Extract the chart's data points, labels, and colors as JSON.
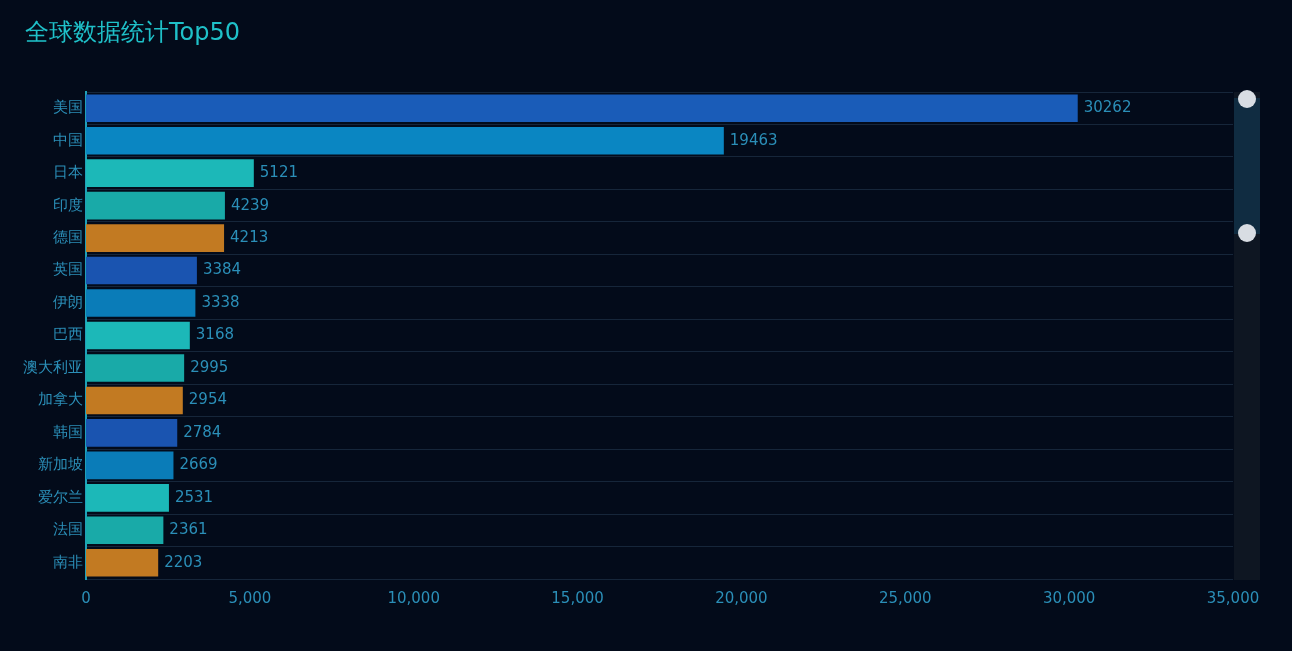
{
  "chart_data": {
    "type": "bar",
    "orientation": "horizontal",
    "title": "全球数据统计Top50",
    "categories": [
      "美国",
      "中国",
      "日本",
      "印度",
      "德国",
      "英国",
      "伊朗",
      "巴西",
      "澳大利亚",
      "加拿大",
      "韩国",
      "新加坡",
      "爱尔兰",
      "法国",
      "南非"
    ],
    "values": [
      30262,
      19463,
      5121,
      4239,
      4213,
      3384,
      3338,
      3168,
      2995,
      2954,
      2784,
      2669,
      2531,
      2361,
      2203
    ],
    "colors": [
      "#1a5cb8",
      "#0a86c2",
      "#1cb8b8",
      "#19aaa8",
      "#c27a22",
      "#1a54b0",
      "#0a7cb8",
      "#1cb8b8",
      "#19aaa8",
      "#c27a22",
      "#1a54b0",
      "#0a7cb8",
      "#1cb8b8",
      "#19aaa8",
      "#c27a22"
    ],
    "xlim": [
      0,
      35000
    ],
    "xticks": [
      {
        "value": 0,
        "label": "0"
      },
      {
        "value": 5000,
        "label": "5,000"
      },
      {
        "value": 10000,
        "label": "10,000"
      },
      {
        "value": 15000,
        "label": "15,000"
      },
      {
        "value": 20000,
        "label": "20,000"
      },
      {
        "value": 25000,
        "label": "25,000"
      },
      {
        "value": 30000,
        "label": "30,000"
      },
      {
        "value": 35000,
        "label": "35,000"
      }
    ],
    "grid": "y",
    "legend": false,
    "data_labels": true
  }
}
